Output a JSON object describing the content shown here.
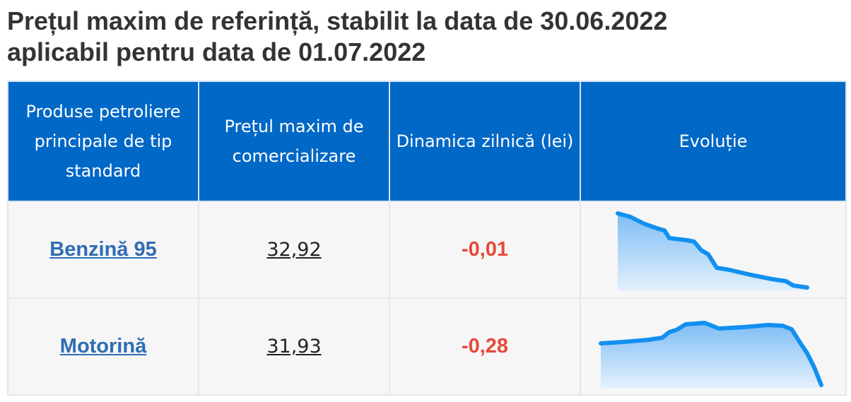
{
  "title": [
    "Prețul maxim de referință, stabilit la data de 30.06.2022",
    "aplicabil pentru data de 01.07.2022"
  ],
  "table": {
    "header": [
      "Produse petroliere principale de tip standard",
      "Prețul maxim de comercializare",
      "Dinamica zilnică (lei)",
      "Evoluție"
    ],
    "rows": [
      [
        "Benzină 95",
        "32,92",
        "-0,01"
      ],
      [
        "Motorină",
        "31,93",
        "-0,28"
      ]
    ]
  }
}
